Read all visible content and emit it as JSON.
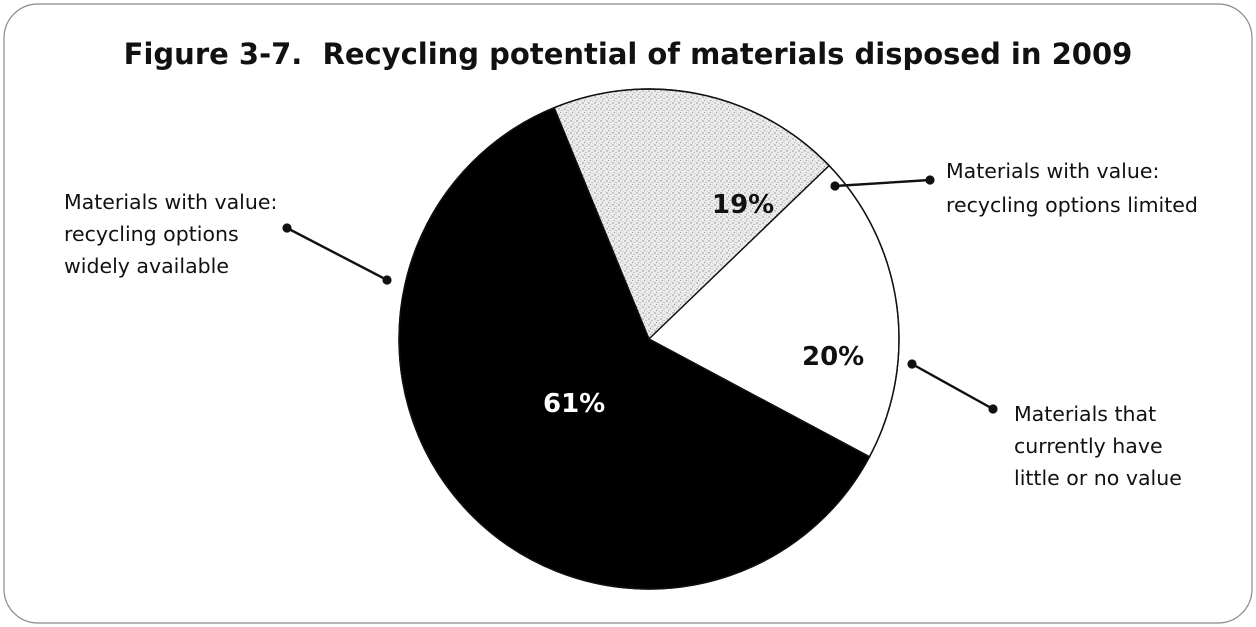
{
  "chart_data": {
    "type": "pie",
    "title": "Figure 3-7.  Recycling potential of materials disposed in 2009",
    "slices": [
      {
        "value": 61,
        "label": "61%",
        "callout": [
          "Materials with value:",
          "recycling options",
          "widely available"
        ],
        "fill": "#000000",
        "pattern": "solid",
        "label_color": "#ffffff"
      },
      {
        "value": 19,
        "label": "19%",
        "callout": [
          "Materials with value:",
          "recycling options limited"
        ],
        "fill": "#e4e4e4",
        "pattern": "stipple",
        "label_color": "#111111"
      },
      {
        "value": 20,
        "label": "20%",
        "callout": [
          "Materials that",
          "currently have",
          "little or no value"
        ],
        "fill": "#ffffff",
        "pattern": "none",
        "label_color": "#111111"
      }
    ]
  }
}
